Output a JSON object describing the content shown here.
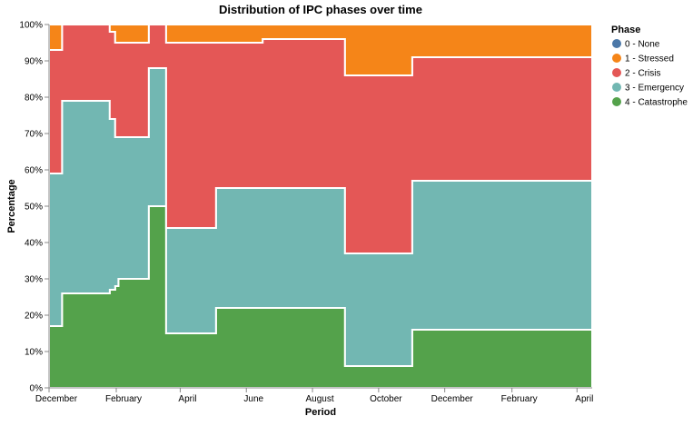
{
  "chart_data": {
    "type": "area",
    "stack": "normalize",
    "interpolation": "step",
    "title": "Distribution of IPC phases over time",
    "xlabel": "Period",
    "ylabel": "Percentage",
    "ylim": [
      0,
      100
    ],
    "y_ticks": [
      0,
      10,
      20,
      30,
      40,
      50,
      60,
      70,
      80,
      90,
      100
    ],
    "y_tick_suffix": "%",
    "x_range": [
      "2022-12-01",
      "2024-04-15"
    ],
    "x_ticks": [
      {
        "date": "2022-12-01",
        "label": "December"
      },
      {
        "date": "2023-02-01",
        "label": "February"
      },
      {
        "date": "2023-04-01",
        "label": "April"
      },
      {
        "date": "2023-06-01",
        "label": "June"
      },
      {
        "date": "2023-08-01",
        "label": "August"
      },
      {
        "date": "2023-10-01",
        "label": "October"
      },
      {
        "date": "2023-12-01",
        "label": "December"
      },
      {
        "date": "2024-02-01",
        "label": "February"
      },
      {
        "date": "2024-04-01",
        "label": "April"
      }
    ],
    "x_step_starts": [
      "2022-12-01",
      "2022-12-13",
      "2023-01-26",
      "2023-01-31",
      "2023-02-03",
      "2023-03-03",
      "2023-03-19",
      "2023-05-04",
      "2023-06-16",
      "2023-08-31",
      "2023-11-01",
      "2024-04-15"
    ],
    "series": [
      {
        "name": "0 - None",
        "color": "#4c78a8",
        "values": [
          0,
          0,
          0,
          0,
          0,
          0,
          0,
          0,
          0,
          0,
          0,
          0
        ]
      },
      {
        "name": "4 - Catastrophe",
        "color": "#54a24b",
        "values": [
          17,
          26,
          27,
          28,
          30,
          50,
          15,
          22,
          22,
          6,
          16,
          16
        ]
      },
      {
        "name": "3 - Emergency",
        "color": "#72b7b2",
        "values": [
          42,
          53,
          47,
          41,
          39,
          38,
          29,
          33,
          33,
          31,
          41,
          41
        ]
      },
      {
        "name": "2 - Crisis",
        "color": "#e45756",
        "values": [
          34,
          21,
          24,
          26,
          26,
          12,
          51,
          40,
          41,
          49,
          34,
          34
        ]
      },
      {
        "name": "1 - Stressed",
        "color": "#f58518",
        "values": [
          7,
          0,
          2,
          5,
          5,
          0,
          5,
          5,
          4,
          14,
          9,
          9
        ]
      }
    ],
    "legend": {
      "title": "Phase",
      "position": "right",
      "entries": [
        {
          "label": "0 - None",
          "color": "#4c78a8"
        },
        {
          "label": "1 - Stressed",
          "color": "#f58518"
        },
        {
          "label": "2 - Crisis",
          "color": "#e45756"
        },
        {
          "label": "3 - Emergency",
          "color": "#72b7b2"
        },
        {
          "label": "4 - Catastrophe",
          "color": "#54a24b"
        }
      ]
    },
    "grid": false
  }
}
